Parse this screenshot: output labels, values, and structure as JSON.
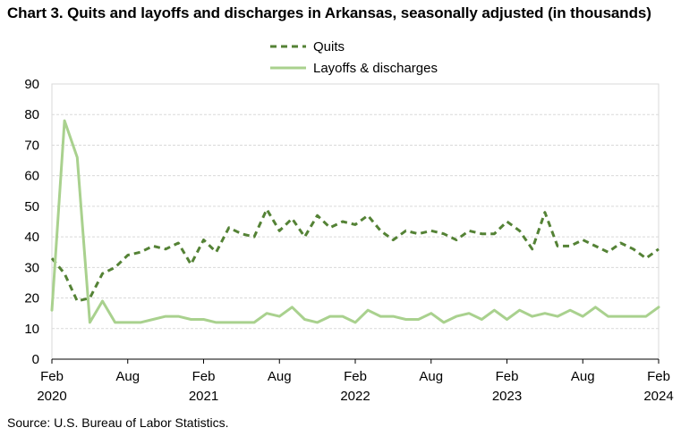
{
  "chart_data": {
    "type": "line",
    "title": "Chart 3. Quits and layoffs and discharges in Arkansas, seasonally adjusted (in thousands)",
    "source": "Source: U.S. Bureau of Labor Statistics.",
    "ylim": [
      0,
      90
    ],
    "yticks": [
      0,
      10,
      20,
      30,
      40,
      50,
      60,
      70,
      80,
      90
    ],
    "x_start": "2020-02",
    "x_end": "2024-02",
    "x_tick_labels": [
      {
        "month": "2020-02",
        "line1": "Feb",
        "line2": "2020"
      },
      {
        "month": "2020-08",
        "line1": "Aug",
        "line2": ""
      },
      {
        "month": "2021-02",
        "line1": "Feb",
        "line2": "2021"
      },
      {
        "month": "2021-08",
        "line1": "Aug",
        "line2": ""
      },
      {
        "month": "2022-02",
        "line1": "Feb",
        "line2": "2022"
      },
      {
        "month": "2022-08",
        "line1": "Aug",
        "line2": ""
      },
      {
        "month": "2023-02",
        "line1": "Feb",
        "line2": "2023"
      },
      {
        "month": "2023-08",
        "line1": "Aug",
        "line2": ""
      },
      {
        "month": "2024-02",
        "line1": "Feb",
        "line2": "2024"
      }
    ],
    "grid": "horizontal",
    "legend_position": "top-center",
    "series": [
      {
        "name": "Quits",
        "style": "dashed",
        "color": "#548235",
        "values": [
          33,
          28,
          19,
          20,
          28,
          30,
          34,
          35,
          37,
          36,
          38,
          31,
          39,
          35,
          43,
          41,
          40,
          49,
          42,
          46,
          40,
          47,
          43,
          45,
          44,
          47,
          42,
          39,
          42,
          41,
          42,
          41,
          39,
          42,
          41,
          41,
          45,
          42,
          36,
          48,
          37,
          37,
          39,
          37,
          35,
          38,
          36,
          33,
          36
        ]
      },
      {
        "name": "Layoffs & discharges",
        "style": "solid",
        "color": "#A9D18E",
        "values": [
          16,
          78,
          66,
          12,
          19,
          12,
          12,
          12,
          13,
          14,
          14,
          13,
          13,
          12,
          12,
          12,
          12,
          15,
          14,
          17,
          13,
          12,
          14,
          14,
          12,
          16,
          14,
          14,
          13,
          13,
          15,
          12,
          14,
          15,
          13,
          16,
          13,
          16,
          14,
          15,
          14,
          16,
          14,
          17,
          14,
          14,
          14,
          14,
          17
        ]
      }
    ]
  }
}
